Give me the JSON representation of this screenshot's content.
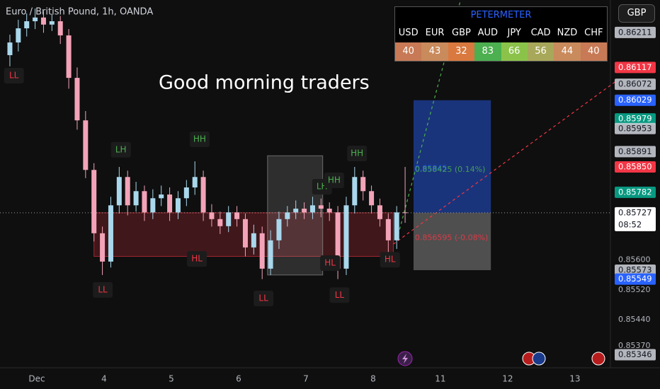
{
  "chart_data": {
    "type": "candlestick",
    "title": "Euro / British Pound, 1h, OANDA",
    "annotation_text": "Good morning traders",
    "xlim": [
      2.453,
      11.527
    ],
    "ylim": [
      0.85311,
      0.86298
    ],
    "xticks": [
      {
        "value": 3,
        "label": "Dec"
      },
      4,
      5,
      6,
      7,
      8,
      {
        "value": 9,
        "label": "11"
      },
      {
        "value": 10,
        "label": "12"
      },
      {
        "value": 11,
        "label": "13"
      }
    ],
    "yticks": [
      {
        "value": 0.856,
        "label": "0.85600"
      },
      {
        "value": 0.8552,
        "label": "0.85520"
      },
      {
        "value": 0.8544,
        "label": "0.85440"
      },
      {
        "value": 0.8537,
        "label": "0.85370"
      }
    ],
    "up_color": "#a9d7ec",
    "down_color": "#f3a3b8",
    "x": [
      2.6,
      2.725,
      2.85,
      2.975,
      3.1,
      3.225,
      3.35,
      3.475,
      3.6,
      3.725,
      3.85,
      3.975,
      4.1,
      4.225,
      4.35,
      4.475,
      4.6,
      4.725,
      4.85,
      4.975,
      5.1,
      5.225,
      5.35,
      5.475,
      5.6,
      5.725,
      5.85,
      5.975,
      6.1,
      6.225,
      6.35,
      6.475,
      6.6,
      6.725,
      6.85,
      6.975,
      7.1,
      7.225,
      7.35,
      7.475,
      7.6,
      7.725,
      7.85,
      7.975,
      8.1,
      8.225,
      8.35,
      8.475
    ],
    "open": [
      0.8615,
      0.86184,
      0.86222,
      0.86241,
      0.86251,
      0.86232,
      0.86241,
      0.86203,
      0.86089,
      0.85975,
      0.85842,
      0.85672,
      0.85596,
      0.85747,
      0.85823,
      0.85747,
      0.85785,
      0.85728,
      0.85766,
      0.85776,
      0.85728,
      0.85766,
      0.85795,
      0.85823,
      0.85728,
      0.8571,
      0.85691,
      0.85728,
      0.8571,
      0.85634,
      0.85672,
      0.85577,
      0.85653,
      0.8571,
      0.85728,
      0.85738,
      0.85728,
      0.85747,
      0.85738,
      0.85728,
      0.85577,
      0.85747,
      0.85823,
      0.85785,
      0.85747,
      0.8571,
      0.85653,
      0.85728
    ],
    "high": [
      0.86205,
      0.86245,
      0.86262,
      0.86275,
      0.86268,
      0.8626,
      0.86255,
      0.8622,
      0.86117,
      0.86,
      0.8586,
      0.8569,
      0.8577,
      0.8585,
      0.8584,
      0.8581,
      0.858,
      0.8579,
      0.858,
      0.85795,
      0.85785,
      0.85815,
      0.85865,
      0.8584,
      0.8575,
      0.8573,
      0.85745,
      0.85745,
      0.85725,
      0.85695,
      0.8569,
      0.8568,
      0.8573,
      0.85745,
      0.8576,
      0.85755,
      0.8577,
      0.85765,
      0.85755,
      0.85745,
      0.8577,
      0.8585,
      0.8584,
      0.858,
      0.85765,
      0.85725,
      0.85745,
      0.8585
    ],
    "low": [
      0.8612,
      0.8616,
      0.862,
      0.8622,
      0.8621,
      0.86215,
      0.8618,
      0.8606,
      0.8595,
      0.8582,
      0.8565,
      0.8556,
      0.8558,
      0.85725,
      0.8572,
      0.8573,
      0.85705,
      0.8571,
      0.85745,
      0.85705,
      0.8571,
      0.85745,
      0.85775,
      0.85705,
      0.8569,
      0.8567,
      0.85675,
      0.8569,
      0.8561,
      0.85615,
      0.85549,
      0.8556,
      0.8563,
      0.8569,
      0.8571,
      0.8571,
      0.8571,
      0.85715,
      0.85705,
      0.85549,
      0.8556,
      0.85725,
      0.8576,
      0.85725,
      0.8569,
      0.8562,
      0.8563,
      0.857
    ],
    "close": [
      0.86184,
      0.86222,
      0.86241,
      0.86251,
      0.86232,
      0.86241,
      0.86203,
      0.86089,
      0.85975,
      0.85842,
      0.85672,
      0.85596,
      0.85747,
      0.85823,
      0.85747,
      0.85785,
      0.85728,
      0.85766,
      0.85776,
      0.85728,
      0.85766,
      0.85795,
      0.85823,
      0.85728,
      0.8571,
      0.85691,
      0.85728,
      0.8571,
      0.85634,
      0.85672,
      0.85577,
      0.85653,
      0.8571,
      0.85728,
      0.85738,
      0.85728,
      0.85747,
      0.85738,
      0.85728,
      0.85577,
      0.85747,
      0.85823,
      0.85785,
      0.85747,
      0.8571,
      0.85653,
      0.85728,
      0.85727
    ],
    "swing_labels": [
      {
        "text": "LL",
        "x": 2.66,
        "price": 0.86095,
        "color": "#f23645"
      },
      {
        "text": "LH",
        "x": 4.25,
        "price": 0.85896,
        "color": "#4caf50"
      },
      {
        "text": "HH",
        "x": 5.42,
        "price": 0.85924,
        "color": "#4caf50"
      },
      {
        "text": "HL",
        "x": 5.38,
        "price": 0.85603,
        "color": "#f23645"
      },
      {
        "text": "LL",
        "x": 3.98,
        "price": 0.8552,
        "color": "#f23645"
      },
      {
        "text": "LL",
        "x": 6.37,
        "price": 0.85497,
        "color": "#f23645"
      },
      {
        "text": "HL",
        "x": 7.36,
        "price": 0.85592,
        "color": "#f23645"
      },
      {
        "text": "LL",
        "x": 7.5,
        "price": 0.85506,
        "color": "#f23645"
      },
      {
        "text": "HH",
        "x": 7.76,
        "price": 0.85886,
        "color": "#4caf50"
      },
      {
        "text": "LH",
        "x": 7.24,
        "price": 0.85797,
        "color": "#4caf50"
      },
      {
        "text": "HH",
        "x": 7.42,
        "price": 0.85814,
        "color": "#4caf50"
      },
      {
        "text": "HL",
        "x": 8.25,
        "price": 0.85601,
        "color": "#f23645"
      }
    ],
    "zones": [
      {
        "x": [
          3.85,
          8.3
        ],
        "price": [
          0.8561,
          0.85727
        ],
        "color": "#f23645"
      },
      {
        "x": [
          6.43,
          7.25
        ],
        "price": [
          0.8556,
          0.8588
        ],
        "color": "#9e9e9e"
      }
    ],
    "position": {
      "x": [
        8.6,
        9.75
      ],
      "target": 0.86029,
      "entry": 0.85727,
      "stop": 0.85573
    },
    "position_texts": [
      {
        "text": "0.85845",
        "x": 8.62,
        "price": 0.85845,
        "color": "#2962ff"
      },
      {
        "text": "0.858425 (0.14%)",
        "x": 8.62,
        "price": 0.858425,
        "color": "#4caf50"
      },
      {
        "text": "0.856595 (-0.08%)",
        "x": 8.62,
        "price": 0.856595,
        "color": "#f23645"
      }
    ],
    "trendlines": [
      {
        "x": [
          8.35,
          9.3
        ],
        "price": [
          0.85653,
          0.86298
        ],
        "color": "#4caf50"
      },
      {
        "x": [
          8.3,
          11.61
        ],
        "price": [
          0.85643,
          0.8608
        ],
        "color": "#f23645"
      }
    ],
    "price_tags": [
      {
        "value": 0.86211,
        "color": "#d1d4dc"
      },
      {
        "value": 0.86117,
        "color": "#f23645"
      },
      {
        "value": 0.86072,
        "color": "#d1d4dc"
      },
      {
        "value": 0.86029,
        "color": "#2962ff"
      },
      {
        "value": 0.85979,
        "color": "#089981"
      },
      {
        "value": 0.85953,
        "color": "#d1d4dc"
      },
      {
        "value": 0.85891,
        "color": "#d1d4dc"
      },
      {
        "value": 0.8585,
        "label": "0.85850",
        "color": "#f23645"
      },
      {
        "value": 0.85782,
        "color": "#089981"
      },
      {
        "value": 0.85727,
        "color": "#ffffff",
        "countdown": "08:52"
      },
      {
        "value": 0.85573,
        "color": "#d1d4dc"
      },
      {
        "value": 0.85549,
        "color": "#2962ff"
      },
      {
        "value": 0.85346,
        "color": "#d1d4dc"
      }
    ]
  },
  "meter": {
    "title": "PETERMETER",
    "currencies": [
      "USD",
      "EUR",
      "GBP",
      "AUD",
      "JPY",
      "CAD",
      "NZD",
      "CHF"
    ],
    "values": [
      40,
      43,
      32,
      83,
      66,
      56,
      44,
      40
    ],
    "colors": [
      "#c77a55",
      "#c98a5c",
      "#d9793f",
      "#4caf50",
      "#8bc34a",
      "#a8a85a",
      "#c98a5c",
      "#c77a55"
    ]
  },
  "currency_button": "GBP"
}
